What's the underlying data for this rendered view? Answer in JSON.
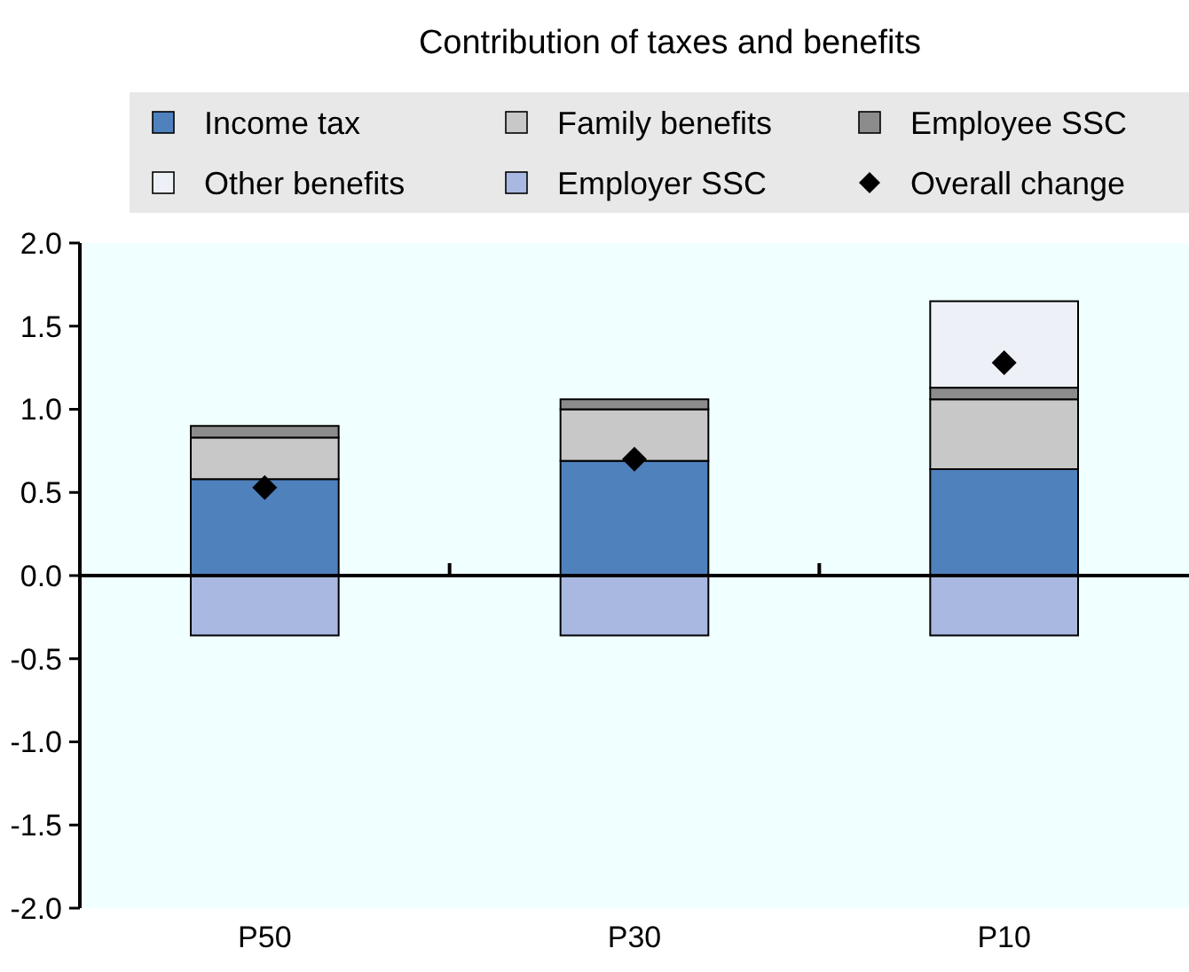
{
  "chart_data": {
    "type": "bar",
    "title": "Contribution of taxes and benefits",
    "stacked": true,
    "categories": [
      "P50",
      "P30",
      "P10"
    ],
    "series": [
      {
        "name": "Income tax",
        "color": "#4f81bd",
        "values": [
          0.58,
          0.69,
          0.64
        ]
      },
      {
        "name": "Family benefits",
        "color": "#c8c8c8",
        "values": [
          0.25,
          0.31,
          0.42
        ]
      },
      {
        "name": "Employee SSC",
        "color": "#8c8c8c",
        "values": [
          0.07,
          0.06,
          0.07
        ]
      },
      {
        "name": "Other benefits",
        "color": "#eef0f8",
        "values": [
          0,
          0,
          0.52
        ]
      },
      {
        "name": "Employer SSC",
        "color": "#a8b8e0",
        "values": [
          -0.36,
          -0.36,
          -0.36
        ]
      },
      {
        "name": "Overall change",
        "type": "scatter",
        "marker": "diamond",
        "color": "#000000",
        "x": [
          "P50",
          "P30",
          "P10"
        ],
        "values": [
          0.53,
          0.7,
          1.28
        ]
      }
    ],
    "ylim": [
      -2,
      2
    ],
    "yticks": [
      {
        "value": -2,
        "label": "-2.0"
      },
      {
        "value": -1.5,
        "label": "-1.5"
      },
      {
        "value": -1,
        "label": "-1.0"
      },
      {
        "value": -0.5,
        "label": "-0.5"
      },
      {
        "value": 0,
        "label": "0.0"
      },
      {
        "value": 0.5,
        "label": "0.5"
      },
      {
        "value": 1,
        "label": "1.0"
      },
      {
        "value": 1.5,
        "label": "1.5"
      },
      {
        "value": 2,
        "label": "2.0"
      }
    ],
    "legend": "top"
  }
}
